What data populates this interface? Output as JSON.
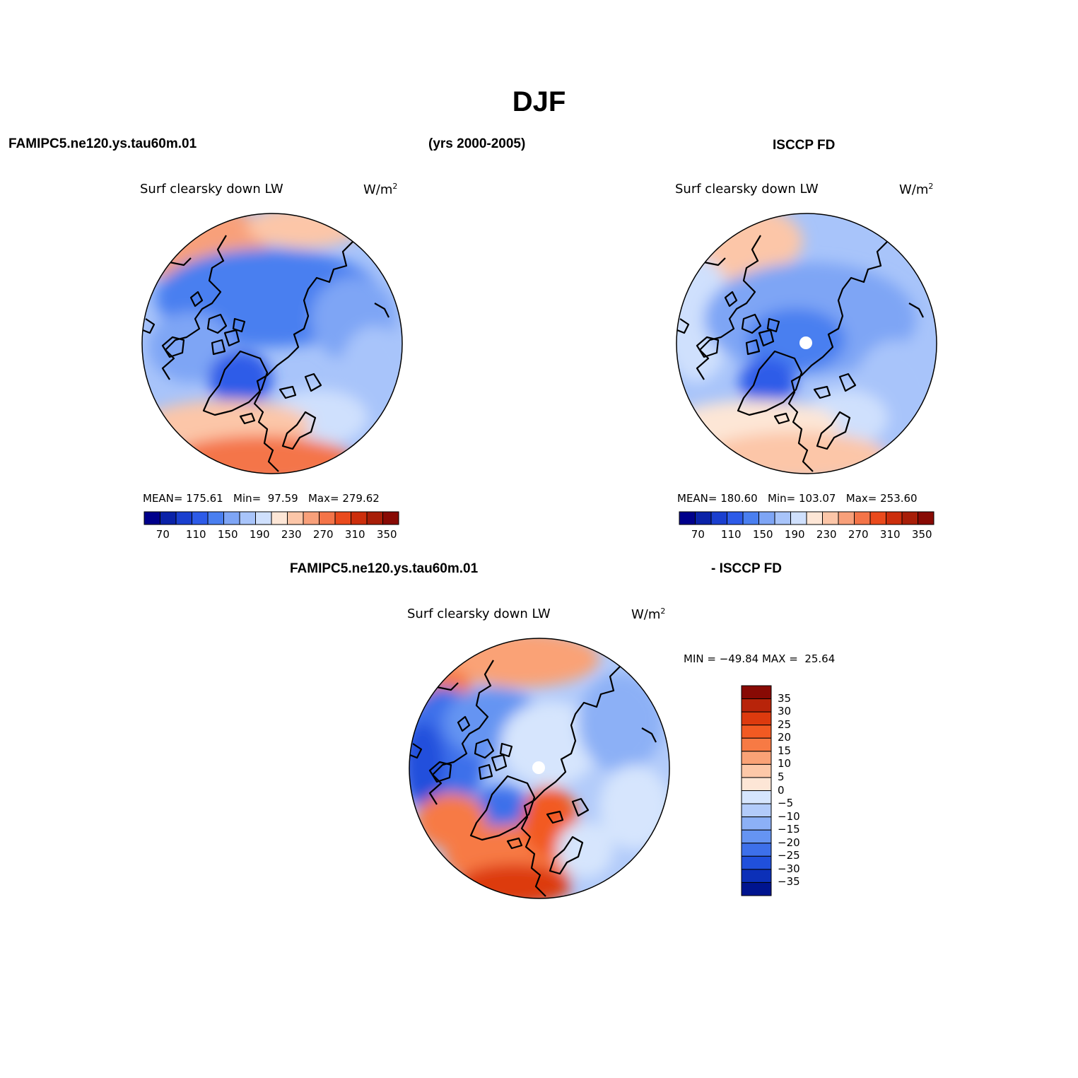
{
  "page": {
    "title": "DJF",
    "left_case": "FAMIPC5.ne120.ys.tau60m.01",
    "period": "(yrs 2000-2005)",
    "right_case": "ISCCP FD",
    "diff_left": "FAMIPC5.ne120.ys.tau60m.01",
    "diff_right": "- ISCCP FD"
  },
  "panels": {
    "model": {
      "variable": "Surf clearsky down LW",
      "units": "W/m",
      "units_sup": "2",
      "stats": "MEAN= 175.61   Min=  97.59   Max= 279.62"
    },
    "obs": {
      "variable": "Surf clearsky down LW",
      "units": "W/m",
      "units_sup": "2",
      "stats": "MEAN= 180.60   Min= 103.07   Max= 253.60"
    },
    "diff": {
      "variable": "Surf clearsky down LW",
      "units": "W/m",
      "units_sup": "2",
      "stats": "MIN = −49.84 MAX =  25.64"
    }
  },
  "colorbar_abs": {
    "colors": [
      "#00008b",
      "#0a22a8",
      "#1a3fcf",
      "#2d5be8",
      "#4a7ff0",
      "#7ea5f5",
      "#a8c4fa",
      "#cfe0fd",
      "#fde6d6",
      "#fcc6a8",
      "#f8a07a",
      "#f47448",
      "#ea4a1c",
      "#cc2e0c",
      "#a81e08",
      "#880a04"
    ],
    "ticks": [
      "70",
      "110",
      "150",
      "190",
      "230",
      "270",
      "310",
      "350"
    ]
  },
  "colorbar_diff": {
    "colors": [
      "#880a04",
      "#b8240a",
      "#dd3a0e",
      "#f25a22",
      "#f77a44",
      "#faa276",
      "#fdc8a8",
      "#fde6d6",
      "#d6e5fd",
      "#b2cbfa",
      "#8cb0f6",
      "#6594f2",
      "#3d70ea",
      "#2050dc",
      "#0c30b8",
      "#00148f"
    ],
    "ticks": [
      "35",
      "30",
      "25",
      "20",
      "15",
      "10",
      "5",
      "0",
      "−5",
      "−10",
      "−15",
      "−20",
      "−25",
      "−30",
      "−35"
    ]
  },
  "chart_data": [
    {
      "type": "heatmap",
      "title": "Surf clearsky down LW",
      "units": "W/m2",
      "projection": "north polar stereographic",
      "mean": 175.61,
      "min": 97.59,
      "max": 279.62,
      "color_levels": [
        70,
        90,
        110,
        130,
        150,
        170,
        190,
        210,
        230,
        250,
        270,
        290,
        310,
        330,
        350
      ]
    },
    {
      "type": "heatmap",
      "title": "Surf clearsky down LW",
      "units": "W/m2",
      "projection": "north polar stereographic",
      "mean": 180.6,
      "min": 103.07,
      "max": 253.6,
      "color_levels": [
        70,
        90,
        110,
        130,
        150,
        170,
        190,
        210,
        230,
        250,
        270,
        290,
        310,
        330,
        350
      ]
    },
    {
      "type": "heatmap",
      "title": "Surf clearsky down LW",
      "units": "W/m2",
      "projection": "north polar stereographic",
      "min": -49.84,
      "max": 25.64,
      "color_levels": [
        -35,
        -30,
        -25,
        -20,
        -15,
        -10,
        -5,
        0,
        5,
        10,
        15,
        20,
        25,
        30,
        35
      ]
    }
  ]
}
